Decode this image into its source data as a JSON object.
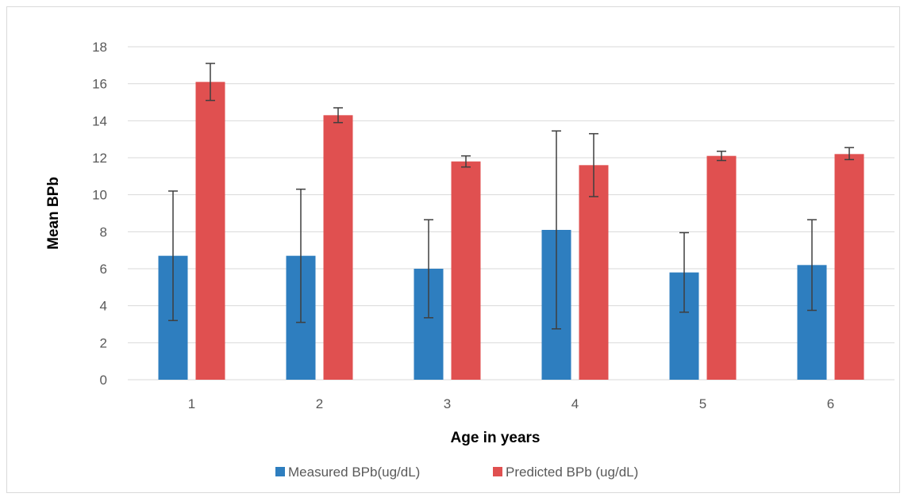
{
  "chart_data": {
    "type": "bar",
    "title": "",
    "xlabel": "Age in years",
    "ylabel": "Mean BPb",
    "categories": [
      "1",
      "2",
      "3",
      "4",
      "5",
      "6"
    ],
    "ylim": [
      0,
      18
    ],
    "yticks": [
      0,
      2,
      4,
      6,
      8,
      10,
      12,
      14,
      16,
      18
    ],
    "grid": true,
    "legend_position": "bottom",
    "series": [
      {
        "name": "Measured BPb(ug/dL)",
        "color": "#2e7ebf",
        "values": [
          6.7,
          6.7,
          6.0,
          8.1,
          5.8,
          6.2
        ],
        "error_low": [
          3.2,
          3.1,
          3.35,
          2.75,
          3.65,
          3.75
        ],
        "error_high": [
          10.2,
          10.3,
          8.65,
          13.45,
          7.95,
          8.65
        ]
      },
      {
        "name": "Predicted BPb (ug/dL)",
        "color": "#e05050",
        "values": [
          16.1,
          14.3,
          11.8,
          11.6,
          12.1,
          12.2
        ],
        "error_low": [
          15.1,
          13.9,
          11.5,
          9.9,
          11.85,
          11.9
        ],
        "error_high": [
          17.1,
          14.7,
          12.1,
          13.3,
          12.35,
          12.55
        ]
      }
    ]
  }
}
